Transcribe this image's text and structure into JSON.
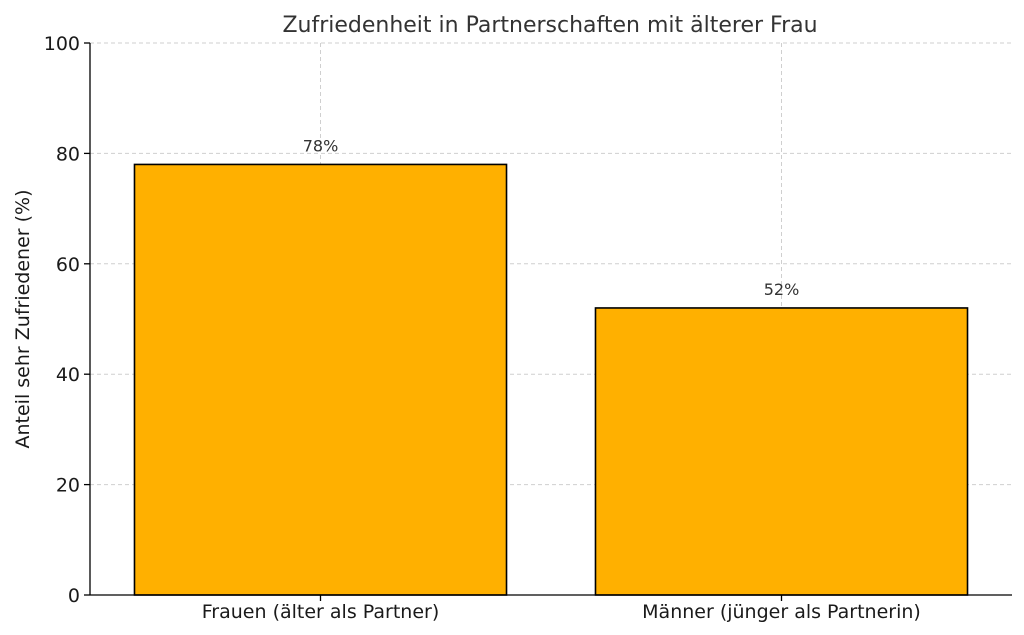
{
  "chart_data": {
    "type": "bar",
    "title": "Zufriedenheit in Partnerschaften mit älterer Frau",
    "xlabel": "",
    "ylabel": "Anteil sehr Zufriedener (%)",
    "categories": [
      "Frauen (älter als Partner)",
      "Männer (jünger als Partnerin)"
    ],
    "values": [
      78,
      52
    ],
    "value_labels": [
      "78%",
      "52%"
    ],
    "ylim": [
      0,
      100
    ],
    "yticks": [
      0,
      20,
      40,
      60,
      80,
      100
    ],
    "ytick_labels": [
      "0",
      "20",
      "40",
      "60",
      "80",
      "100"
    ],
    "grid": true,
    "bar_color": "#ffb000",
    "bar_edge_color": "#000000"
  }
}
